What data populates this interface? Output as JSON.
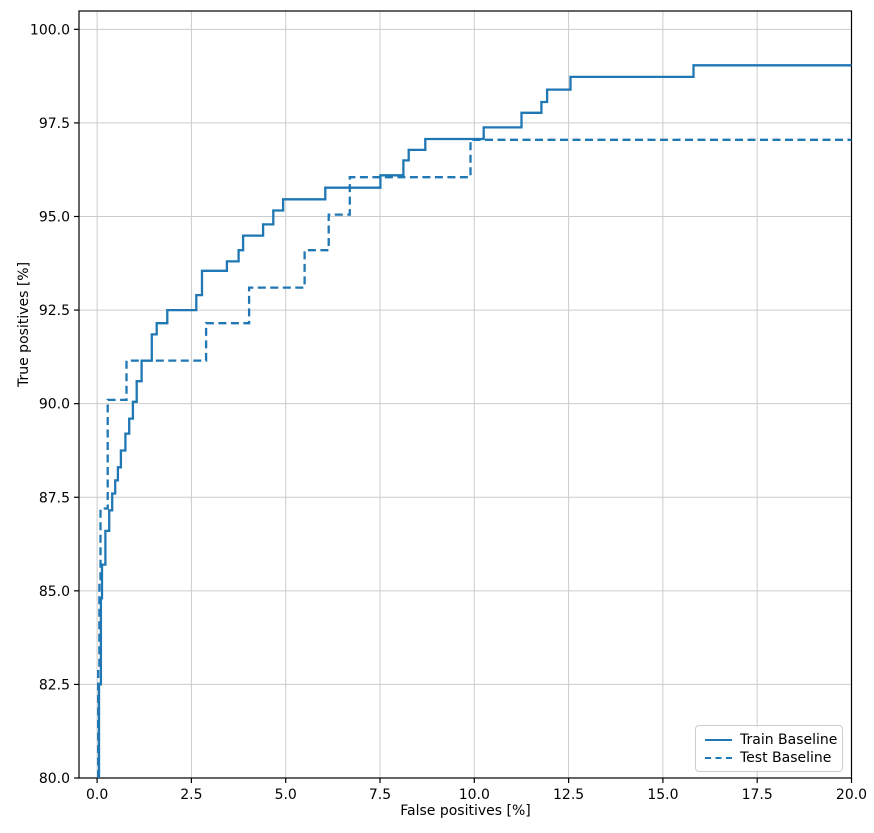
{
  "chart_data": {
    "type": "line",
    "subtype": "step-roc-curve",
    "title": "",
    "xlabel": "False positives [%]",
    "ylabel": "True positives [%]",
    "xlim": [
      -0.48,
      20.0
    ],
    "ylim": [
      80.0,
      100.49
    ],
    "xticks": [
      0.0,
      2.5,
      5.0,
      7.5,
      10.0,
      12.5,
      15.0,
      17.5,
      20.0
    ],
    "xtick_labels": [
      "0.0",
      "2.5",
      "5.0",
      "7.5",
      "10.0",
      "12.5",
      "15.0",
      "17.5",
      "20.0"
    ],
    "yticks": [
      80.0,
      82.5,
      85.0,
      87.5,
      90.0,
      92.5,
      95.0,
      97.5,
      100.0
    ],
    "ytick_labels": [
      "80.0",
      "82.5",
      "85.0",
      "87.5",
      "90.0",
      "92.5",
      "95.0",
      "97.5",
      "100.0"
    ],
    "grid": true,
    "legend_position": "lower right",
    "series": [
      {
        "name": "Train Baseline",
        "style": "solid",
        "color": "#1f77b4",
        "points": [
          [
            0.05,
            80.0
          ],
          [
            0.05,
            82.5
          ],
          [
            0.1,
            82.5
          ],
          [
            0.1,
            84.8
          ],
          [
            0.13,
            84.8
          ],
          [
            0.13,
            85.7
          ],
          [
            0.22,
            85.7
          ],
          [
            0.22,
            86.6
          ],
          [
            0.32,
            86.6
          ],
          [
            0.32,
            87.15
          ],
          [
            0.4,
            87.15
          ],
          [
            0.4,
            87.6
          ],
          [
            0.48,
            87.6
          ],
          [
            0.48,
            87.95
          ],
          [
            0.55,
            87.95
          ],
          [
            0.55,
            88.3
          ],
          [
            0.63,
            88.3
          ],
          [
            0.63,
            88.75
          ],
          [
            0.75,
            88.75
          ],
          [
            0.75,
            89.2
          ],
          [
            0.85,
            89.2
          ],
          [
            0.85,
            89.6
          ],
          [
            0.95,
            89.6
          ],
          [
            0.95,
            90.05
          ],
          [
            1.05,
            90.05
          ],
          [
            1.05,
            90.6
          ],
          [
            1.18,
            90.6
          ],
          [
            1.18,
            91.15
          ],
          [
            1.45,
            91.15
          ],
          [
            1.45,
            91.85
          ],
          [
            1.58,
            91.85
          ],
          [
            1.58,
            92.15
          ],
          [
            1.86,
            92.15
          ],
          [
            1.86,
            92.5
          ],
          [
            2.63,
            92.5
          ],
          [
            2.63,
            92.9
          ],
          [
            2.78,
            92.9
          ],
          [
            2.78,
            93.55
          ],
          [
            3.44,
            93.55
          ],
          [
            3.44,
            93.8
          ],
          [
            3.75,
            93.8
          ],
          [
            3.75,
            94.1
          ],
          [
            3.87,
            94.1
          ],
          [
            3.87,
            94.49
          ],
          [
            4.4,
            94.49
          ],
          [
            4.4,
            94.79
          ],
          [
            4.67,
            94.79
          ],
          [
            4.67,
            95.16
          ],
          [
            4.93,
            95.16
          ],
          [
            4.93,
            95.46
          ],
          [
            6.05,
            95.46
          ],
          [
            6.05,
            95.77
          ],
          [
            7.51,
            95.77
          ],
          [
            7.51,
            96.1
          ],
          [
            8.12,
            96.1
          ],
          [
            8.12,
            96.5
          ],
          [
            8.26,
            96.5
          ],
          [
            8.26,
            96.78
          ],
          [
            8.7,
            96.78
          ],
          [
            8.7,
            97.07
          ],
          [
            10.25,
            97.07
          ],
          [
            10.25,
            97.38
          ],
          [
            11.25,
            97.38
          ],
          [
            11.25,
            97.77
          ],
          [
            11.78,
            97.77
          ],
          [
            11.78,
            98.06
          ],
          [
            11.93,
            98.06
          ],
          [
            11.93,
            98.39
          ],
          [
            12.55,
            98.39
          ],
          [
            12.55,
            98.73
          ],
          [
            15.81,
            98.73
          ],
          [
            15.81,
            99.04
          ],
          [
            20.0,
            99.04
          ]
        ]
      },
      {
        "name": "Test Baseline",
        "style": "dashed",
        "color": "#1f77b4",
        "points": [
          [
            0.03,
            80.0
          ],
          [
            0.03,
            83.0
          ],
          [
            0.06,
            83.0
          ],
          [
            0.06,
            85.2
          ],
          [
            0.09,
            85.2
          ],
          [
            0.09,
            87.2
          ],
          [
            0.28,
            87.2
          ],
          [
            0.28,
            90.1
          ],
          [
            0.78,
            90.1
          ],
          [
            0.78,
            91.15
          ],
          [
            2.89,
            91.15
          ],
          [
            2.89,
            92.15
          ],
          [
            4.03,
            92.15
          ],
          [
            4.03,
            93.1
          ],
          [
            5.5,
            93.1
          ],
          [
            5.5,
            94.1
          ],
          [
            6.14,
            94.1
          ],
          [
            6.14,
            95.05
          ],
          [
            6.7,
            95.05
          ],
          [
            6.7,
            96.05
          ],
          [
            9.9,
            96.05
          ],
          [
            9.9,
            97.05
          ],
          [
            20.0,
            97.05
          ]
        ]
      }
    ]
  },
  "legend": {
    "items": [
      {
        "label": "Train Baseline",
        "line_style": "solid"
      },
      {
        "label": "Test Baseline",
        "line_style": "dashed"
      }
    ]
  },
  "colors": {
    "line": "#1f77b4",
    "grid": "#cccccc",
    "spine": "#000000",
    "tick_text": "#000000",
    "legend_border": "#cccccc",
    "background": "#ffffff"
  }
}
